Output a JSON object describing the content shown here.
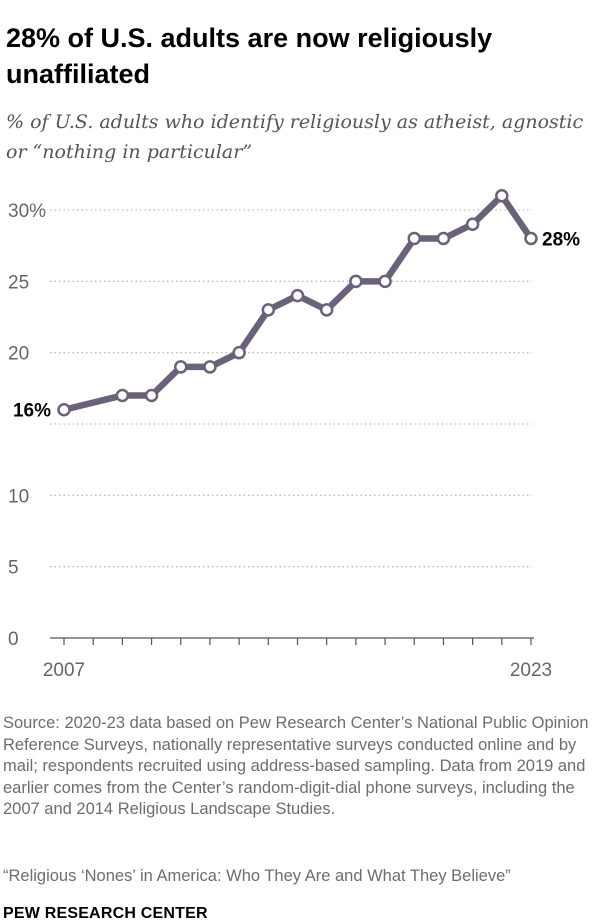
{
  "title": "28% of U.S. adults are now religiously unaffiliated",
  "subtitle": "% of U.S. adults who identify religiously as atheist, agnostic or “nothing in particular”",
  "chart_data": {
    "type": "line",
    "x": [
      2007,
      2008,
      2009,
      2010,
      2011,
      2012,
      2013,
      2014,
      2015,
      2016,
      2017,
      2018,
      2019,
      2020,
      2021,
      2022,
      2023
    ],
    "series": [
      {
        "values": [
          16,
          null,
          17,
          17,
          19,
          19,
          20,
          23,
          24,
          23,
          25,
          25,
          28,
          28,
          29,
          31,
          28
        ]
      }
    ],
    "ylim": [
      0,
      30
    ],
    "yticks": [
      0,
      5,
      10,
      15,
      20,
      25,
      30
    ],
    "ytick_labels": [
      "0",
      "5",
      "10",
      "",
      "20",
      "25",
      "30%"
    ],
    "xtick_labels": {
      "2007": "2007",
      "2023": "2023"
    },
    "annotations": [
      {
        "x": 2007,
        "label": "16%"
      },
      {
        "x": 2023,
        "label": "28%"
      }
    ],
    "grid": true,
    "colors": {
      "line": "#6b6178",
      "marker_fill": "#ffffff",
      "grid": "#bdbdbd",
      "axis": "#555555",
      "tick_text": "#666666"
    }
  },
  "footer": {
    "source": "Source: 2020-23 data based on Pew Research Center’s National Public Opinion Reference Surveys, nationally representative surveys conducted online and by mail; respondents recruited using address-based sampling. Data from 2019 and earlier comes from the Center’s random-digit-dial phone surveys, including the 2007 and 2014 Religious Landscape Studies.",
    "report": "“Religious ‘Nones’ in America: Who They Are and What They Believe”",
    "brand": "PEW RESEARCH CENTER"
  }
}
